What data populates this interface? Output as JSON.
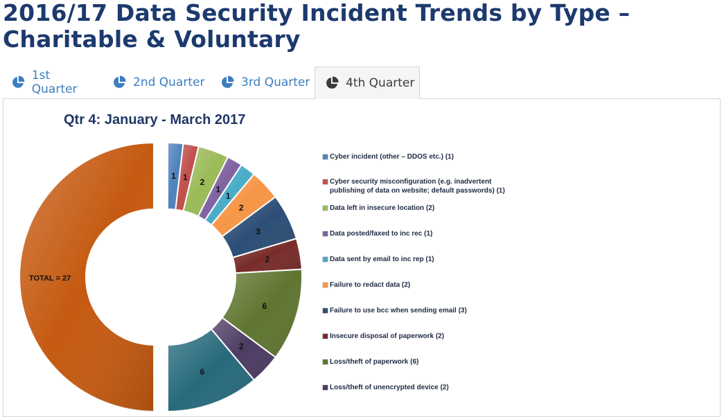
{
  "page": {
    "title": "2016/17 Data Security Incident Trends by Type – Charitable & Voluntary"
  },
  "tabs": [
    {
      "label": "1st Quarter",
      "icon": "pie-chart-icon",
      "active": false
    },
    {
      "label": "2nd Quarter",
      "icon": "pie-chart-icon",
      "active": false
    },
    {
      "label": "3rd Quarter",
      "icon": "pie-chart-icon",
      "active": false
    },
    {
      "label": "4th Quarter",
      "icon": "pie-chart-icon",
      "active": true
    }
  ],
  "colors": {
    "title": "#1c3a6e",
    "tab_inactive": "#3b7ec0",
    "tab_active_text": "#3b3b3b",
    "total_segment": "#c55a11"
  },
  "chart_data": {
    "type": "pie",
    "title": "Qtr 4: January - March 2017",
    "total_label": "TOTAL = 27",
    "total": 27,
    "slices": [
      {
        "label": "Cyber incident (other – DDOS etc.) (1)",
        "value": 1,
        "color": "#4f81bd"
      },
      {
        "label": "Cyber security misconfiguration (e.g. inadvertent publishing of data on website; default passwords) (1)",
        "value": 1,
        "color": "#c0504d"
      },
      {
        "label": "Data left in insecure location (2)",
        "value": 2,
        "color": "#9bbb59"
      },
      {
        "label": "Data posted/faxed to inc rec (1)",
        "value": 1,
        "color": "#8064a2"
      },
      {
        "label": "Data sent by email to inc rep (1)",
        "value": 1,
        "color": "#4bacc6"
      },
      {
        "label": "Failure to redact data (2)",
        "value": 2,
        "color": "#f79646"
      },
      {
        "label": "Failure to use bcc when sending email (3)",
        "value": 3,
        "color": "#2c4d75"
      },
      {
        "label": "Insecure disposal of paperwork (2)",
        "value": 2,
        "color": "#772c2a"
      },
      {
        "label": "Loss/theft of paperwork (6)",
        "value": 6,
        "color": "#5f7530"
      },
      {
        "label": "Loss/theft of unencrypted device (2)",
        "value": 2,
        "color": "#4d3b62"
      },
      {
        "label": "",
        "value": 6,
        "color": "#276a7c"
      }
    ]
  }
}
